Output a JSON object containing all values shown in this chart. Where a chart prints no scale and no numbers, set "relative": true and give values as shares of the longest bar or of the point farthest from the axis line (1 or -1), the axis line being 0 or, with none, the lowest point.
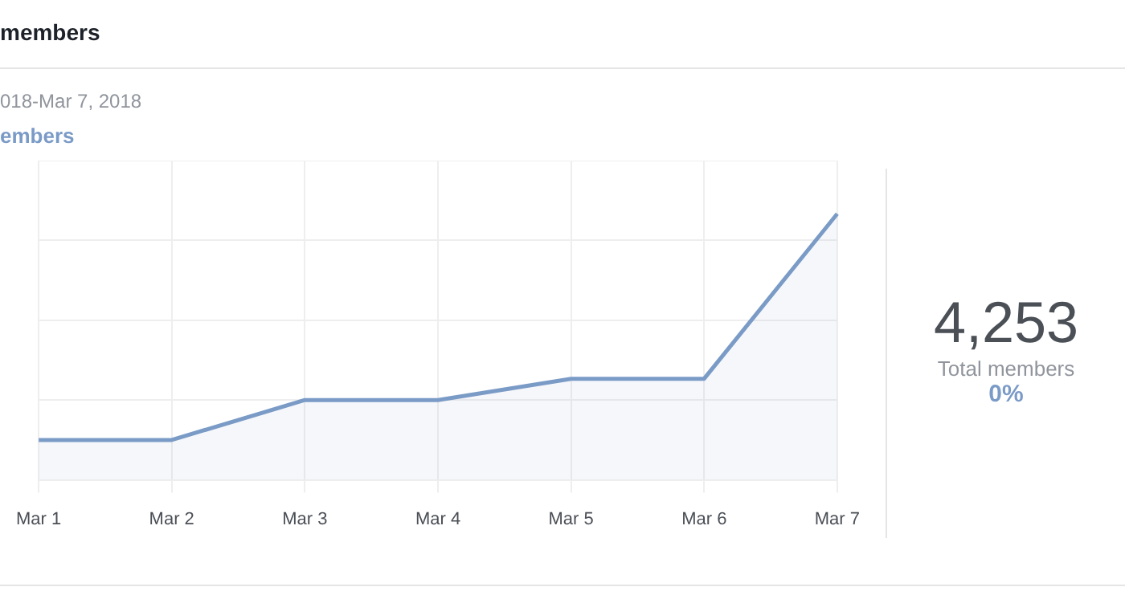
{
  "chart_data": {
    "type": "area",
    "title": "members",
    "subtitle": "018-Mar 7, 2018",
    "categories": [
      "Mar 1",
      "Mar 2",
      "Mar 3",
      "Mar 4",
      "Mar 5",
      "Mar 6",
      "Mar 7"
    ],
    "series": [
      {
        "name": "embers",
        "color": "#7b9bc7",
        "values": [
          0.15,
          0.15,
          0.3,
          0.3,
          0.38,
          0.38,
          1
        ]
      }
    ],
    "relative": true,
    "grid": true,
    "legend": false,
    "annotations": [
      "4,253",
      "Total members",
      "0%"
    ]
  }
}
